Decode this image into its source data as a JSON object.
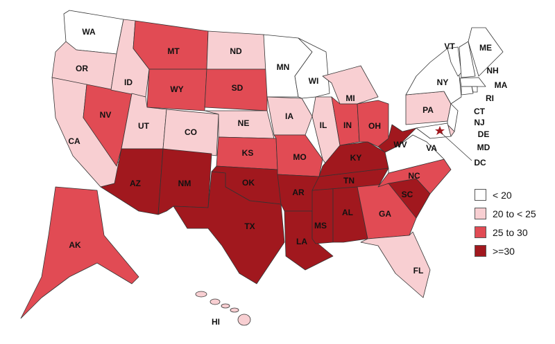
{
  "colors": {
    "lt20": "#ffffff",
    "20to25": "#f8cfd2",
    "25to30": "#e14b54",
    "ge30": "#a1181e"
  },
  "legend": [
    {
      "key": "lt20",
      "label": "< 20"
    },
    {
      "key": "20to25",
      "label": "20 to < 25"
    },
    {
      "key": "25to30",
      "label": "25 to 30"
    },
    {
      "key": "ge30",
      "label": ">=30"
    }
  ],
  "states": [
    {
      "abbr": "WA",
      "cat": "lt20"
    },
    {
      "abbr": "OR",
      "cat": "20to25"
    },
    {
      "abbr": "CA",
      "cat": "20to25"
    },
    {
      "abbr": "NV",
      "cat": "25to30"
    },
    {
      "abbr": "ID",
      "cat": "20to25"
    },
    {
      "abbr": "MT",
      "cat": "25to30"
    },
    {
      "abbr": "WY",
      "cat": "25to30"
    },
    {
      "abbr": "UT",
      "cat": "20to25"
    },
    {
      "abbr": "CO",
      "cat": "20to25"
    },
    {
      "abbr": "AZ",
      "cat": "ge30"
    },
    {
      "abbr": "NM",
      "cat": "ge30"
    },
    {
      "abbr": "ND",
      "cat": "20to25"
    },
    {
      "abbr": "SD",
      "cat": "25to30"
    },
    {
      "abbr": "NE",
      "cat": "20to25"
    },
    {
      "abbr": "KS",
      "cat": "25to30"
    },
    {
      "abbr": "OK",
      "cat": "ge30"
    },
    {
      "abbr": "TX",
      "cat": "ge30"
    },
    {
      "abbr": "MN",
      "cat": "lt20"
    },
    {
      "abbr": "IA",
      "cat": "20to25"
    },
    {
      "abbr": "MO",
      "cat": "25to30"
    },
    {
      "abbr": "AR",
      "cat": "ge30"
    },
    {
      "abbr": "LA",
      "cat": "ge30"
    },
    {
      "abbr": "WI",
      "cat": "lt20"
    },
    {
      "abbr": "IL",
      "cat": "20to25"
    },
    {
      "abbr": "MS",
      "cat": "ge30"
    },
    {
      "abbr": "AL",
      "cat": "ge30"
    },
    {
      "abbr": "TN",
      "cat": "ge30"
    },
    {
      "abbr": "KY",
      "cat": "ge30"
    },
    {
      "abbr": "IN",
      "cat": "25to30"
    },
    {
      "abbr": "OH",
      "cat": "25to30"
    },
    {
      "abbr": "MI",
      "cat": "20to25"
    },
    {
      "abbr": "GA",
      "cat": "25to30"
    },
    {
      "abbr": "FL",
      "cat": "20to25"
    },
    {
      "abbr": "SC",
      "cat": "ge30"
    },
    {
      "abbr": "NC",
      "cat": "25to30"
    },
    {
      "abbr": "VA",
      "cat": "lt20"
    },
    {
      "abbr": "WV",
      "cat": "ge30"
    },
    {
      "abbr": "PA",
      "cat": "20to25"
    },
    {
      "abbr": "NY",
      "cat": "lt20"
    },
    {
      "abbr": "VT",
      "cat": "lt20"
    },
    {
      "abbr": "NH",
      "cat": "lt20"
    },
    {
      "abbr": "ME",
      "cat": "lt20"
    },
    {
      "abbr": "MA",
      "cat": "lt20"
    },
    {
      "abbr": "RI",
      "cat": "lt20"
    },
    {
      "abbr": "CT",
      "cat": "lt20"
    },
    {
      "abbr": "NJ",
      "cat": "lt20"
    },
    {
      "abbr": "DE",
      "cat": "20to25"
    },
    {
      "abbr": "MD",
      "cat": "lt20"
    },
    {
      "abbr": "DC",
      "cat": "ge30"
    },
    {
      "abbr": "AK",
      "cat": "25to30"
    },
    {
      "abbr": "HI",
      "cat": "20to25"
    }
  ]
}
